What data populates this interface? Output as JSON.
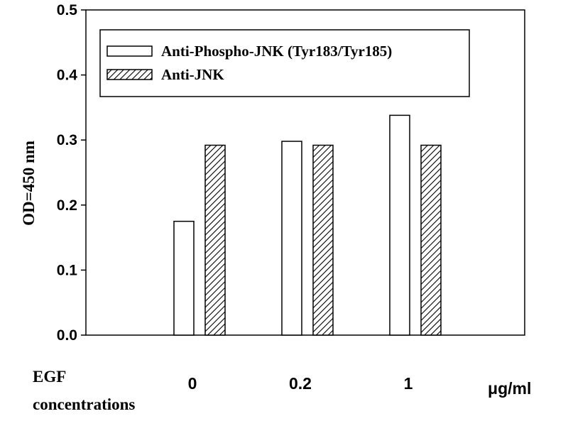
{
  "chart_data": {
    "type": "bar",
    "categories": [
      "0",
      "0.2",
      "1"
    ],
    "series": [
      {
        "name": "Anti-Phospho-JNK (Tyr183/Tyr185)",
        "values": [
          0.175,
          0.298,
          0.338
        ],
        "pattern": "open"
      },
      {
        "name": "Anti-JNK",
        "values": [
          0.292,
          0.292,
          0.292
        ],
        "pattern": "hatched"
      }
    ],
    "ylabel": "OD=450 nm",
    "ylim": [
      0,
      0.5
    ],
    "yticks": [
      "0.0",
      "0.1",
      "0.2",
      "0.3",
      "0.4",
      "0.5"
    ],
    "xlabel_line1": "EGF",
    "xlabel_line2": "concentrations",
    "x_unit": "μg/ml",
    "grid": false,
    "legend_position": "top"
  }
}
